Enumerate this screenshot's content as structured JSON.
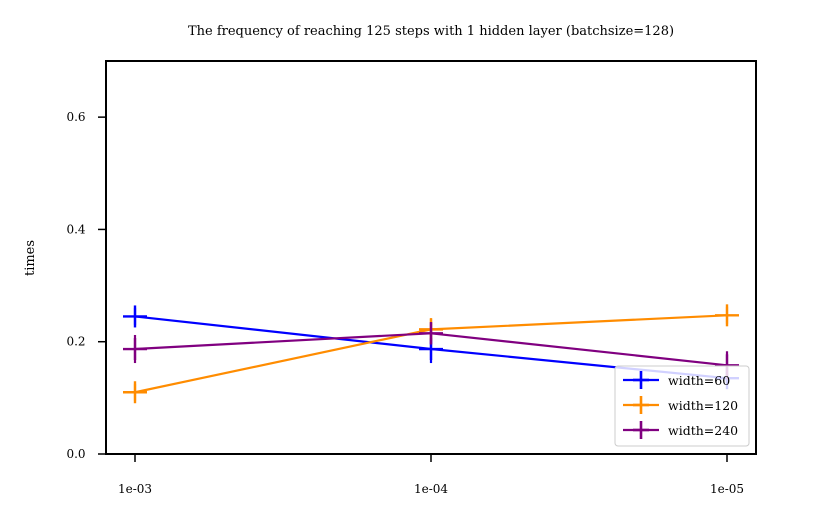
{
  "chart_data": {
    "type": "line",
    "title": "The frequency of reaching 125 steps with 1 hidden layer (batchsize=128)",
    "xlabel": "",
    "ylabel": "times",
    "categories": [
      "1e-03",
      "1e-04",
      "1e-05"
    ],
    "ylim": [
      0.0,
      0.7
    ],
    "yticks": [
      0.0,
      0.2,
      0.4,
      0.6
    ],
    "ytick_labels": [
      "0.0",
      "0.2",
      "0.4",
      "0.6"
    ],
    "grid": false,
    "legend_position": "lower-right",
    "series": [
      {
        "name": "width=60",
        "color": "#0000ff",
        "values": [
          0.245,
          0.187,
          0.135
        ],
        "errors": [
          0.015,
          0.025,
          0.01
        ]
      },
      {
        "name": "width=120",
        "color": "#ff8c00",
        "values": [
          0.11,
          0.222,
          0.247
        ],
        "errors": [
          0.015,
          0.02,
          0.015
        ]
      },
      {
        "name": "width=240",
        "color": "#800080",
        "values": [
          0.187,
          0.215,
          0.158
        ],
        "errors": [
          0.025,
          0.02,
          0.025
        ]
      }
    ]
  }
}
